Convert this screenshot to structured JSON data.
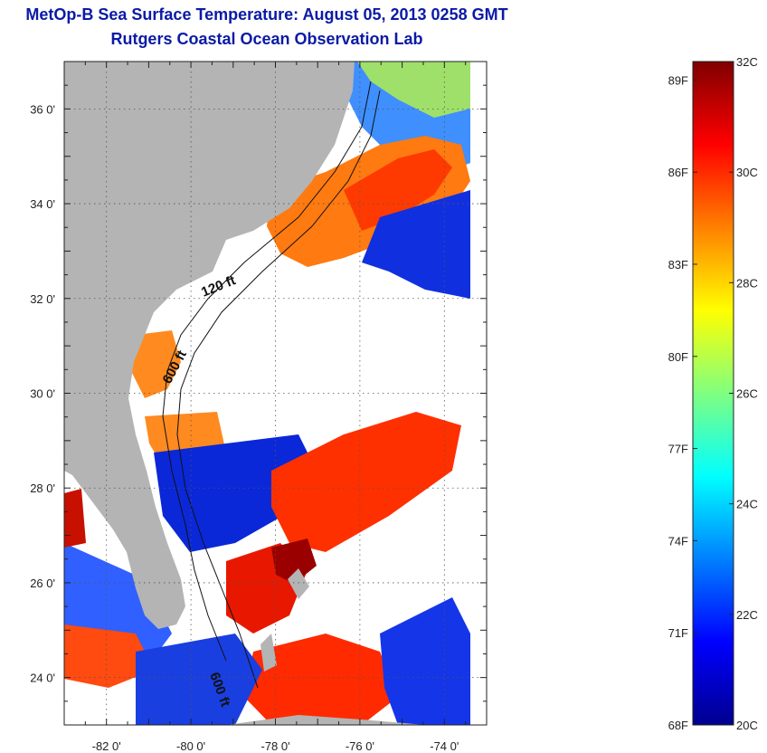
{
  "title": "MetOp-B Sea Surface Temperature:  August 05, 2013 0258 GMT",
  "subtitle": "Rutgers Coastal Ocean Observation Lab",
  "map": {
    "lon_range": [
      -83,
      -73
    ],
    "lat_range": [
      23,
      37
    ],
    "lon_ticks": [
      {
        "value": -82,
        "label": "-82 0'"
      },
      {
        "value": -80,
        "label": "-80 0'"
      },
      {
        "value": -78,
        "label": "-78 0'"
      },
      {
        "value": -76,
        "label": "-76 0'"
      },
      {
        "value": -74,
        "label": "-74 0'"
      }
    ],
    "lat_ticks": [
      {
        "value": 36,
        "label": "36 0'"
      },
      {
        "value": 34,
        "label": "34 0'"
      },
      {
        "value": 32,
        "label": "32 0'"
      },
      {
        "value": 30,
        "label": "30 0'"
      },
      {
        "value": 28,
        "label": "28 0'"
      },
      {
        "value": 26,
        "label": "26 0'"
      },
      {
        "value": 24,
        "label": "24 0'"
      }
    ],
    "contour_labels": [
      "120 ft",
      "600 ft",
      "600 ft"
    ],
    "colors": {
      "land": "#b4b4b4",
      "cloud": "#ffffff"
    }
  },
  "colorbar": {
    "range_c": [
      20,
      32
    ],
    "celsius_labels": [
      {
        "value": 32,
        "label": "32C"
      },
      {
        "value": 30,
        "label": "30C"
      },
      {
        "value": 28,
        "label": "28C"
      },
      {
        "value": 26,
        "label": "26C"
      },
      {
        "value": 24,
        "label": "24C"
      },
      {
        "value": 22,
        "label": "22C"
      },
      {
        "value": 20,
        "label": "20C"
      }
    ],
    "fahrenheit_labels": [
      {
        "value": 89,
        "label": "89F"
      },
      {
        "value": 86,
        "label": "86F"
      },
      {
        "value": 83,
        "label": "83F"
      },
      {
        "value": 80,
        "label": "80F"
      },
      {
        "value": 77,
        "label": "77F"
      },
      {
        "value": 74,
        "label": "74F"
      },
      {
        "value": 71,
        "label": "71F"
      },
      {
        "value": 68,
        "label": "68F"
      }
    ],
    "stops": [
      "#00008f",
      "#0000ff",
      "#0080ff",
      "#00ffff",
      "#80ff80",
      "#ffff00",
      "#ff8000",
      "#ff0000",
      "#800000"
    ]
  }
}
